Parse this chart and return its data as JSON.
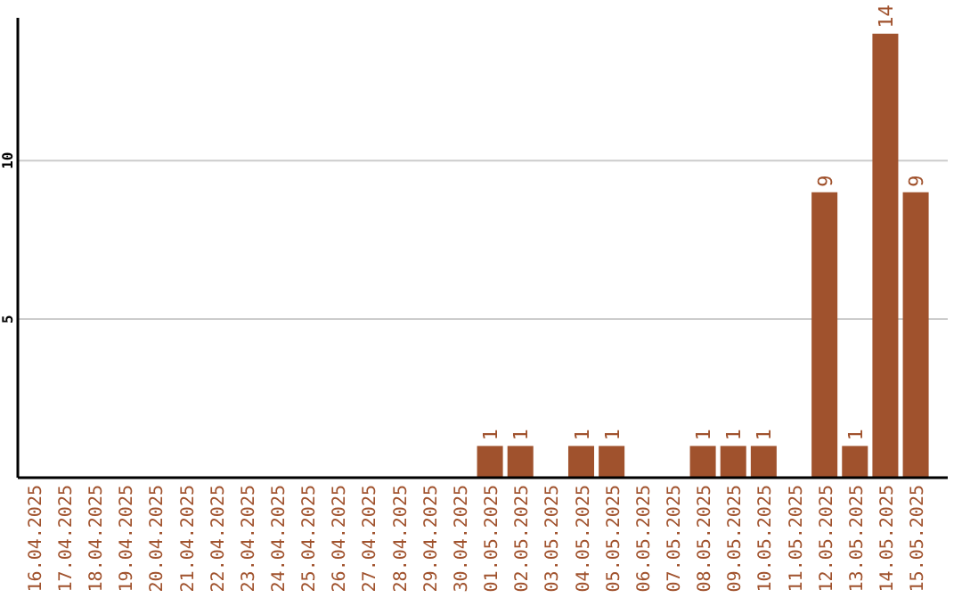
{
  "chart_data": {
    "type": "bar",
    "categories": [
      "16.04.2025",
      "17.04.2025",
      "18.04.2025",
      "19.04.2025",
      "20.04.2025",
      "21.04.2025",
      "22.04.2025",
      "23.04.2025",
      "24.04.2025",
      "25.04.2025",
      "26.04.2025",
      "27.04.2025",
      "28.04.2025",
      "29.04.2025",
      "30.04.2025",
      "01.05.2025",
      "02.05.2025",
      "03.05.2025",
      "04.05.2025",
      "05.05.2025",
      "06.05.2025",
      "07.05.2025",
      "08.05.2025",
      "09.05.2025",
      "10.05.2025",
      "11.05.2025",
      "12.05.2025",
      "13.05.2025",
      "14.05.2025",
      "15.05.2025"
    ],
    "values": [
      0,
      0,
      0,
      0,
      0,
      0,
      0,
      0,
      0,
      0,
      0,
      0,
      0,
      0,
      0,
      1,
      1,
      0,
      1,
      1,
      0,
      0,
      1,
      1,
      1,
      0,
      9,
      1,
      14,
      9
    ],
    "value_labels": [
      null,
      null,
      null,
      null,
      null,
      null,
      null,
      null,
      null,
      null,
      null,
      null,
      null,
      null,
      null,
      "1",
      "1",
      null,
      "1",
      "1",
      null,
      null,
      "1",
      "1",
      "1",
      null,
      "9",
      "1",
      "14",
      "9"
    ],
    "color": "#a0522d",
    "ylim": [
      0,
      14.5
    ],
    "yticks": [
      5,
      10
    ],
    "grid": "y"
  }
}
